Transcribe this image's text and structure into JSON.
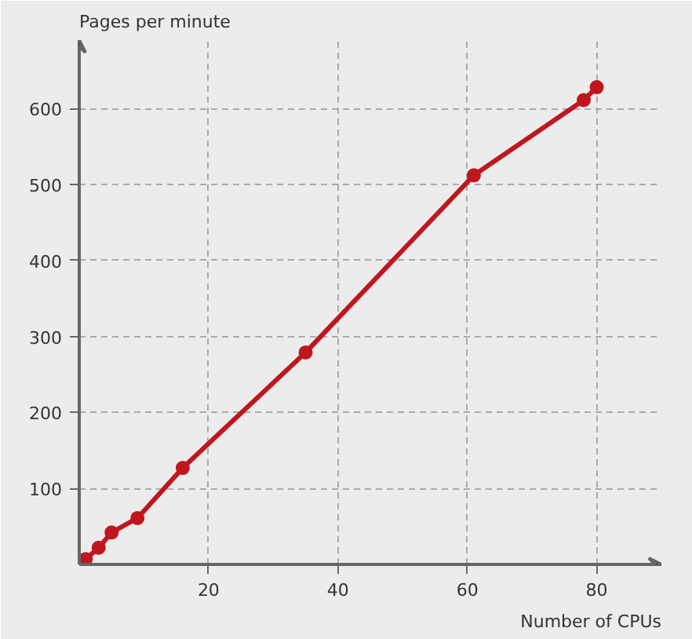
{
  "chart_data": {
    "type": "line",
    "xlabel": "Number of CPUs",
    "ylabel": "Pages per minute",
    "x": [
      1,
      3,
      5,
      9,
      16,
      35,
      61,
      78,
      80
    ],
    "series": [
      {
        "color": "#c0161e",
        "values": [
          7,
          22,
          42,
          61,
          127,
          279,
          512,
          611,
          628
        ]
      }
    ],
    "xlim": [
      0,
      90
    ],
    "ylim": [
      0,
      690
    ],
    "xticks": [
      20,
      40,
      60,
      80
    ],
    "yticks": [
      100,
      200,
      300,
      400,
      500,
      600
    ],
    "grid": true,
    "marker": "circle",
    "line_style": "solid"
  }
}
